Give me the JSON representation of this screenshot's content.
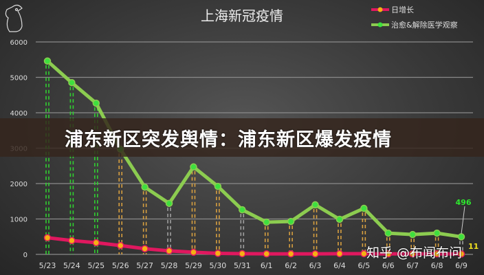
{
  "banner": "浦东新区突发舆情：浦东新区爆发疫情",
  "watermark": "知乎 @布闻布问",
  "chart_data": {
    "type": "line",
    "title": "上海新冠疫情",
    "xlabel": "",
    "ylabel": "",
    "ylim": [
      0,
      6000
    ],
    "yticks": [
      0,
      1000,
      2000,
      3000,
      4000,
      5000,
      6000
    ],
    "grid": true,
    "legend_position": "top-right",
    "categories": [
      "5/23",
      "5/24",
      "5/25",
      "5/26",
      "5/27",
      "5/28",
      "5/29",
      "5/30",
      "5/31",
      "6/1",
      "6/2",
      "6/3",
      "6/4",
      "6/5",
      "6/6",
      "6/7",
      "6/8",
      "6/9"
    ],
    "series": [
      {
        "name": "日增长",
        "color": "#e0185f",
        "marker_color": "#f5b014",
        "values": [
          470,
          390,
          330,
          250,
          160,
          100,
          60,
          30,
          20,
          15,
          15,
          15,
          20,
          20,
          15,
          15,
          15,
          11
        ],
        "end_label": "11",
        "end_label_color": "#f0e020"
      },
      {
        "name": "治愈&解除医学观察",
        "color": "#8ccc50",
        "marker_color": "#3ee03e",
        "values": [
          5460,
          4850,
          4270,
          2970,
          1900,
          1440,
          2470,
          1920,
          1260,
          910,
          930,
          1400,
          990,
          1300,
          600,
          560,
          600,
          496
        ],
        "end_label": "496",
        "end_label_color": "#2ee82e"
      }
    ]
  }
}
